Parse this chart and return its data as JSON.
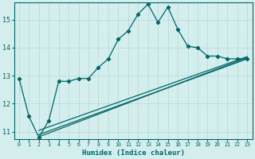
{
  "xlabel": "Humidex (Indice chaleur)",
  "bg_color": "#d4eeee",
  "grid_color": "#b8dcdc",
  "line_color": "#006666",
  "xlim": [
    -0.5,
    23.5
  ],
  "ylim": [
    10.75,
    15.6
  ],
  "yticks": [
    11,
    12,
    13,
    14,
    15
  ],
  "xticks": [
    0,
    1,
    2,
    3,
    4,
    5,
    6,
    7,
    8,
    9,
    10,
    11,
    12,
    13,
    14,
    15,
    16,
    17,
    18,
    19,
    20,
    21,
    22,
    23
  ],
  "line1_x": [
    0,
    1,
    2,
    3,
    4,
    5,
    6,
    7,
    8,
    9,
    10,
    11,
    12,
    13,
    14,
    15,
    16,
    17,
    18,
    19,
    20,
    21,
    22,
    23
  ],
  "line1_y": [
    12.9,
    11.55,
    10.8,
    11.4,
    12.8,
    12.8,
    12.9,
    12.9,
    13.3,
    13.6,
    14.3,
    14.6,
    15.2,
    15.55,
    14.9,
    15.45,
    14.65,
    14.05,
    14.0,
    13.7,
    13.7,
    13.6,
    13.6,
    13.6
  ],
  "line2_x": [
    2,
    23
  ],
  "line2_y": [
    10.82,
    13.65
  ],
  "line3_x": [
    2,
    23
  ],
  "line3_y": [
    10.9,
    13.6
  ],
  "line4_x": [
    2,
    23
  ],
  "line4_y": [
    11.05,
    13.68
  ],
  "xlabel_fontsize": 6.5,
  "xtick_fontsize": 4.8,
  "ytick_fontsize": 6.0
}
